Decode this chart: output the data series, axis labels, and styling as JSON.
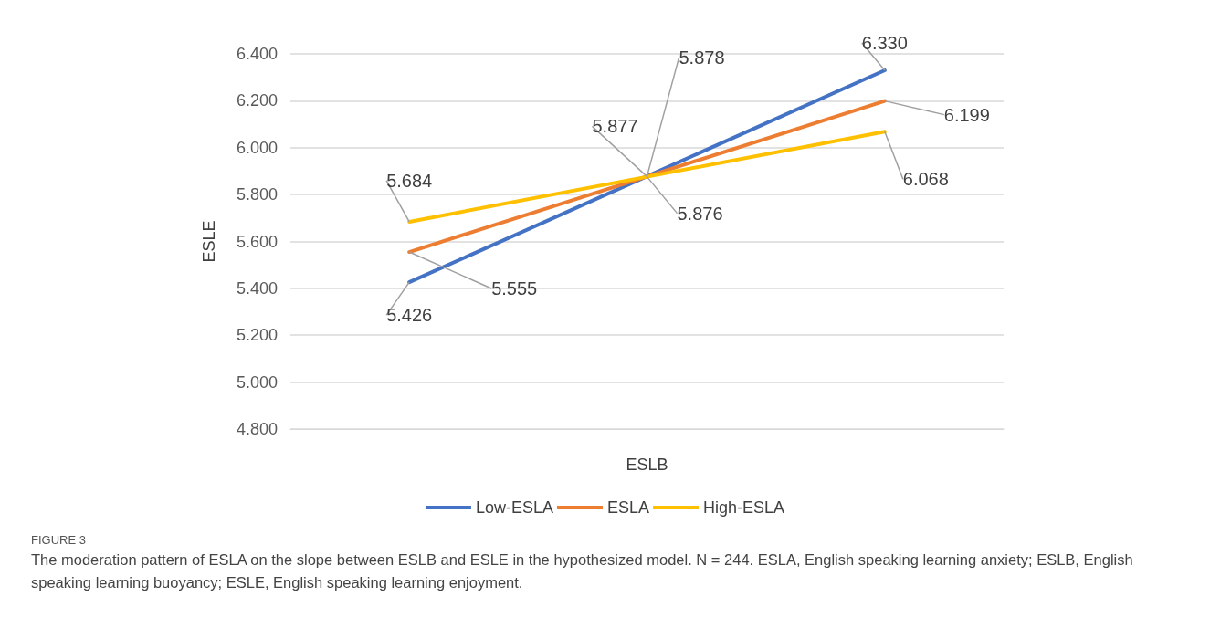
{
  "chart_data": {
    "type": "line",
    "xlabel": "ESLB",
    "ylabel": "ESLE",
    "categories": [
      null,
      null,
      null
    ],
    "series": [
      {
        "name": "Low-ESLA",
        "color": "#4472c4",
        "values": [
          5.426,
          5.878,
          6.33
        ],
        "value_labels": [
          "5.426",
          "5.878",
          "6.330"
        ]
      },
      {
        "name": "ESLA",
        "color": "#ed7d31",
        "values": [
          5.555,
          5.877,
          6.199
        ],
        "value_labels": [
          "5.555",
          "5.877",
          "6.199"
        ]
      },
      {
        "name": "High-ESLA",
        "color": "#ffc000",
        "values": [
          5.684,
          5.876,
          6.068
        ],
        "value_labels": [
          "5.684",
          "5.876",
          "6.068"
        ]
      }
    ],
    "ylim": [
      4.8,
      6.4
    ],
    "yticks": [
      {
        "value": 4.8,
        "label": "4.800"
      },
      {
        "value": 5.0,
        "label": "5.000"
      },
      {
        "value": 5.2,
        "label": "5.200"
      },
      {
        "value": 5.4,
        "label": "5.400"
      },
      {
        "value": 5.6,
        "label": "5.600"
      },
      {
        "value": 5.8,
        "label": "5.800"
      },
      {
        "value": 6.0,
        "label": "6.000"
      },
      {
        "value": 6.2,
        "label": "6.200"
      },
      {
        "value": 6.4,
        "label": "6.400"
      }
    ],
    "grid": "y",
    "legend": "bottom",
    "marker": "none",
    "line_style": "solid",
    "annotations": [
      "FIGURE 3",
      "The moderation pattern of ESLA on the slope between ESLB and ESLE in the hypothesized model. N = 244. ESLA, English speaking learning anxiety; ESLB, English speaking learning buoyancy; ESLE, English speaking learning enjoyment."
    ]
  }
}
